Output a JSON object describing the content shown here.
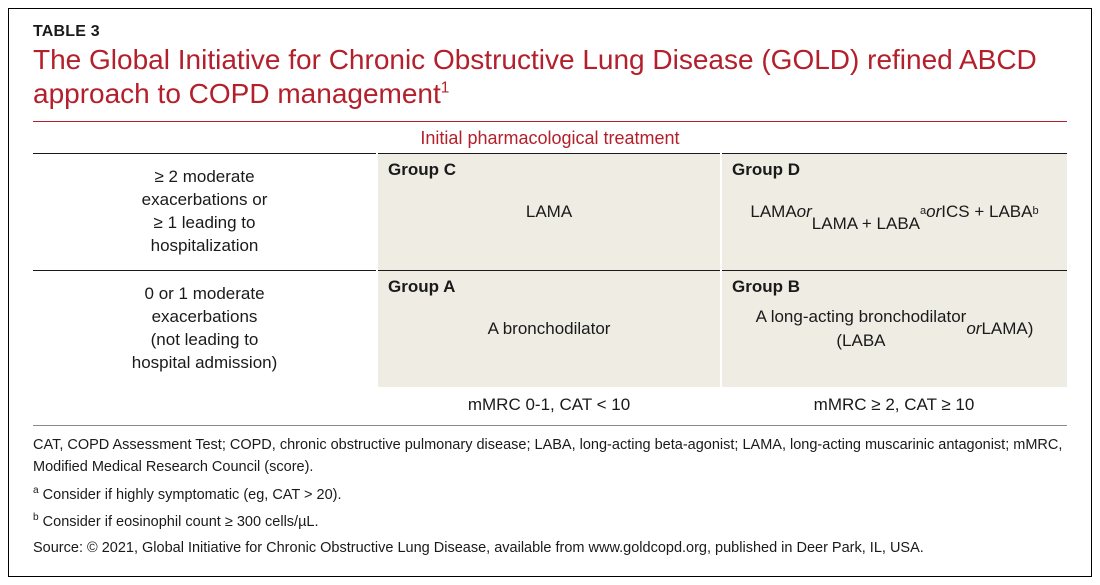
{
  "header": {
    "table_label": "TABLE 3",
    "title_html": "The Global Initiative for Chronic Obstructive Lung Disease (GOLD) refined ABCD approach to COPD management<sup>1</sup>",
    "subtitle": "Initial pharmacological treatment"
  },
  "colors": {
    "accent": "#b3202c",
    "cell_bg": "#eeece3",
    "border": "#1a1a1a"
  },
  "rows": [
    {
      "label_html": "≥ 2 moderate<br>exacerbations or<br>≥ 1 leading to<br>hospitalization",
      "left": {
        "group": "Group C",
        "body_html": "LAMA"
      },
      "right": {
        "group": "Group D",
        "body_html": "LAMA <em>or</em><br>LAMA + LABA<span class=\"supn\">a</span><br><em>or</em> ICS + LABA<span class=\"supn\">b</span>"
      }
    },
    {
      "label_html": "0 or 1 moderate<br>exacerbations<br>(not leading to<br>hospital admission)",
      "left": {
        "group": "Group A",
        "body_html": "A bronchodilator"
      },
      "right": {
        "group": "Group B",
        "body_html": "A long-acting bronchodilator<br>(LABA <em>or</em> LAMA)"
      }
    }
  ],
  "axis": {
    "left": "mMRC 0-1, CAT < 10",
    "right": "mMRC ≥ 2, CAT ≥ 10"
  },
  "notes": {
    "abbrev": "CAT, COPD Assessment Test; COPD, chronic obstructive pulmonary disease; LABA, long-acting beta-agonist; LAMA, long-acting muscarinic antagonist; mMRC, Modified Medical Research Council (score).",
    "fn_a_html": "<span class=\"supn\">a</span> Consider if highly symptomatic (eg, CAT > 20).",
    "fn_b_html": "<span class=\"supn\">b</span> Consider if eosinophil count ≥ 300 cells/µL.",
    "source": "Source: © 2021, Global Initiative for Chronic Obstructive Lung Disease, available from www.goldcopd.org, published in Deer Park, IL, USA."
  }
}
